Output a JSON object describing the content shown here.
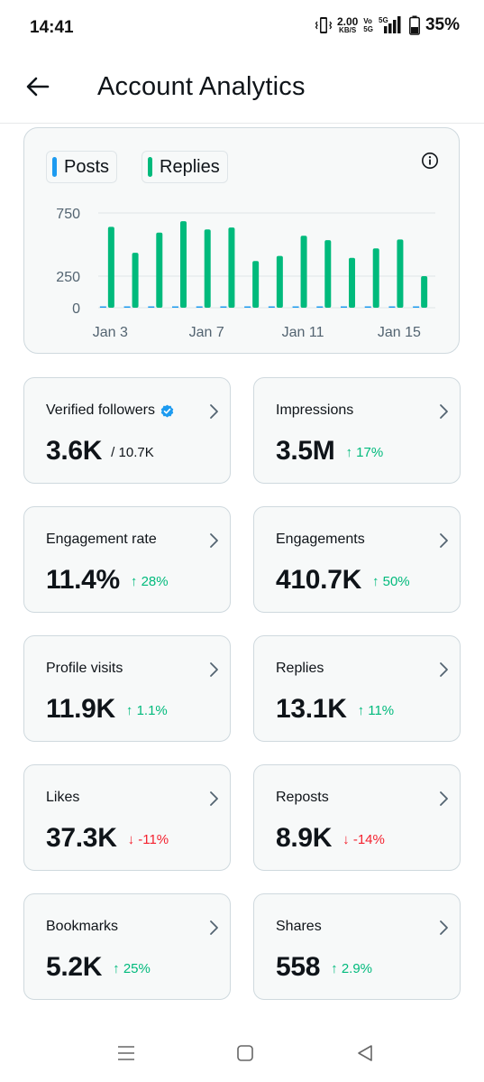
{
  "status_bar": {
    "time": "14:41",
    "speed_value": "2.00",
    "speed_unit": "KB/S",
    "volte_top": "Vo",
    "volte_bottom": "5G",
    "network": "5G",
    "battery_percent": "35%"
  },
  "header": {
    "title": "Account Analytics",
    "back_icon": "arrow-left-icon"
  },
  "legend": {
    "posts_label": "Posts",
    "posts_color": "#1d9bf0",
    "replies_label": "Replies",
    "replies_color": "#00ba7c"
  },
  "chart_data": {
    "type": "bar",
    "categories": [
      "Jan 3",
      "Jan 4",
      "Jan 5",
      "Jan 6",
      "Jan 7",
      "Jan 8",
      "Jan 9",
      "Jan 10",
      "Jan 11",
      "Jan 12",
      "Jan 13",
      "Jan 14",
      "Jan 15",
      "Jan 16"
    ],
    "x_tick_labels": [
      "Jan 3",
      "Jan 7",
      "Jan 11",
      "Jan 15"
    ],
    "y_tick_labels": [
      "750",
      "250",
      "0"
    ],
    "y_ticks": [
      750,
      250,
      0
    ],
    "ylim": [
      0,
      750
    ],
    "series": [
      {
        "name": "Posts",
        "color": "#1d9bf0",
        "values": [
          0,
          0,
          0,
          0,
          0,
          0,
          0,
          0,
          0,
          0,
          0,
          0,
          0,
          0
        ]
      },
      {
        "name": "Replies",
        "color": "#00ba7c",
        "values": [
          640,
          435,
          595,
          685,
          620,
          635,
          370,
          410,
          570,
          535,
          395,
          470,
          540,
          250
        ]
      }
    ],
    "grid": true
  },
  "metrics": [
    {
      "label": "Verified followers",
      "value": "3.6K",
      "total": "/ 10.7K",
      "delta": "",
      "direction": "none",
      "verified": true
    },
    {
      "label": "Impressions",
      "value": "3.5M",
      "delta": "17%",
      "direction": "up"
    },
    {
      "label": "Engagement rate",
      "value": "11.4%",
      "delta": "28%",
      "direction": "up"
    },
    {
      "label": "Engagements",
      "value": "410.7K",
      "delta": "50%",
      "direction": "up"
    },
    {
      "label": "Profile visits",
      "value": "11.9K",
      "delta": "1.1%",
      "direction": "up"
    },
    {
      "label": "Replies",
      "value": "13.1K",
      "delta": "11%",
      "direction": "up"
    },
    {
      "label": "Likes",
      "value": "37.3K",
      "delta": "-11%",
      "direction": "down"
    },
    {
      "label": "Reposts",
      "value": "8.9K",
      "delta": "-14%",
      "direction": "down"
    },
    {
      "label": "Bookmarks",
      "value": "5.2K",
      "delta": "25%",
      "direction": "up"
    },
    {
      "label": "Shares",
      "value": "558",
      "delta": "2.9%",
      "direction": "up"
    }
  ],
  "navbar": {
    "menu_icon": "menu-icon",
    "home_icon": "home-square-icon",
    "back_icon": "back-triangle-icon"
  }
}
